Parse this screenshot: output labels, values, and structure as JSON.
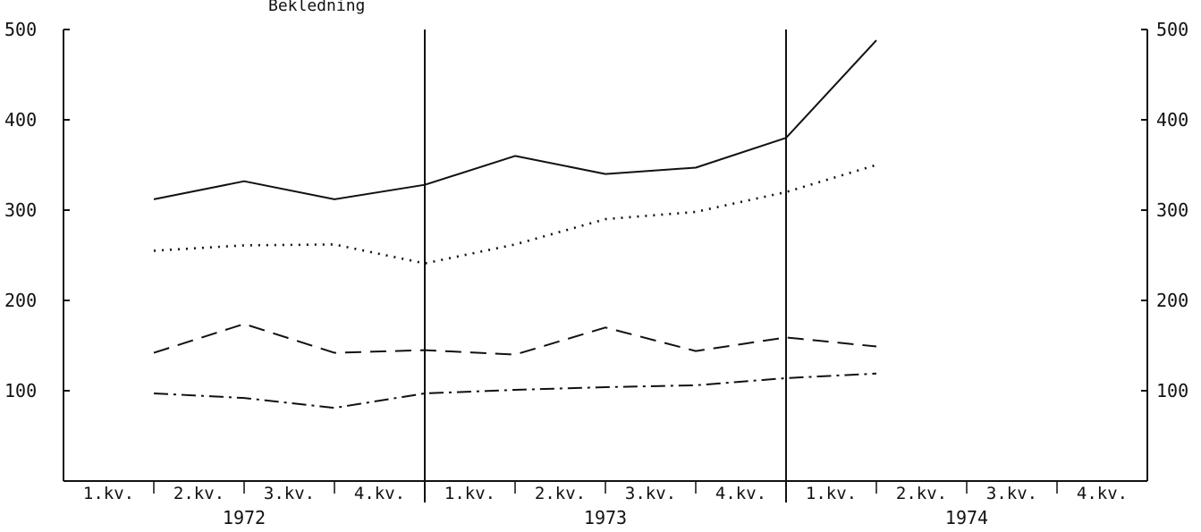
{
  "header": {
    "cut_text": "Bekledning"
  },
  "chart_data": {
    "type": "line",
    "title": "",
    "xlabel": "",
    "ylabel": "",
    "ylim": [
      0,
      500
    ],
    "yticks": [
      100,
      200,
      300,
      400,
      500
    ],
    "y_tick_labels": [
      "100",
      "200",
      "300",
      "400",
      "500"
    ],
    "grid": false,
    "legend": "none",
    "quarter_labels": [
      "1.kv.",
      "2.kv.",
      "3.kv.",
      "4.kv.",
      "1.kv.",
      "2.kv.",
      "3.kv.",
      "4.kv.",
      "1.kv.",
      "2.kv.",
      "3.kv.",
      "4.kv."
    ],
    "years": [
      "1972",
      "1973",
      "1974"
    ],
    "series": [
      {
        "style": "solid",
        "values": [
          312,
          332,
          312,
          328,
          360,
          340,
          347,
          380,
          488
        ]
      },
      {
        "style": "dotted",
        "values": [
          255,
          261,
          262,
          241,
          262,
          290,
          298,
          320,
          350
        ]
      },
      {
        "style": "dashed",
        "values": [
          142,
          174,
          142,
          145,
          140,
          170,
          144,
          159,
          149
        ]
      },
      {
        "style": "dashdot",
        "values": [
          97,
          92,
          81,
          97,
          101,
          104,
          106,
          114,
          119
        ]
      }
    ]
  }
}
